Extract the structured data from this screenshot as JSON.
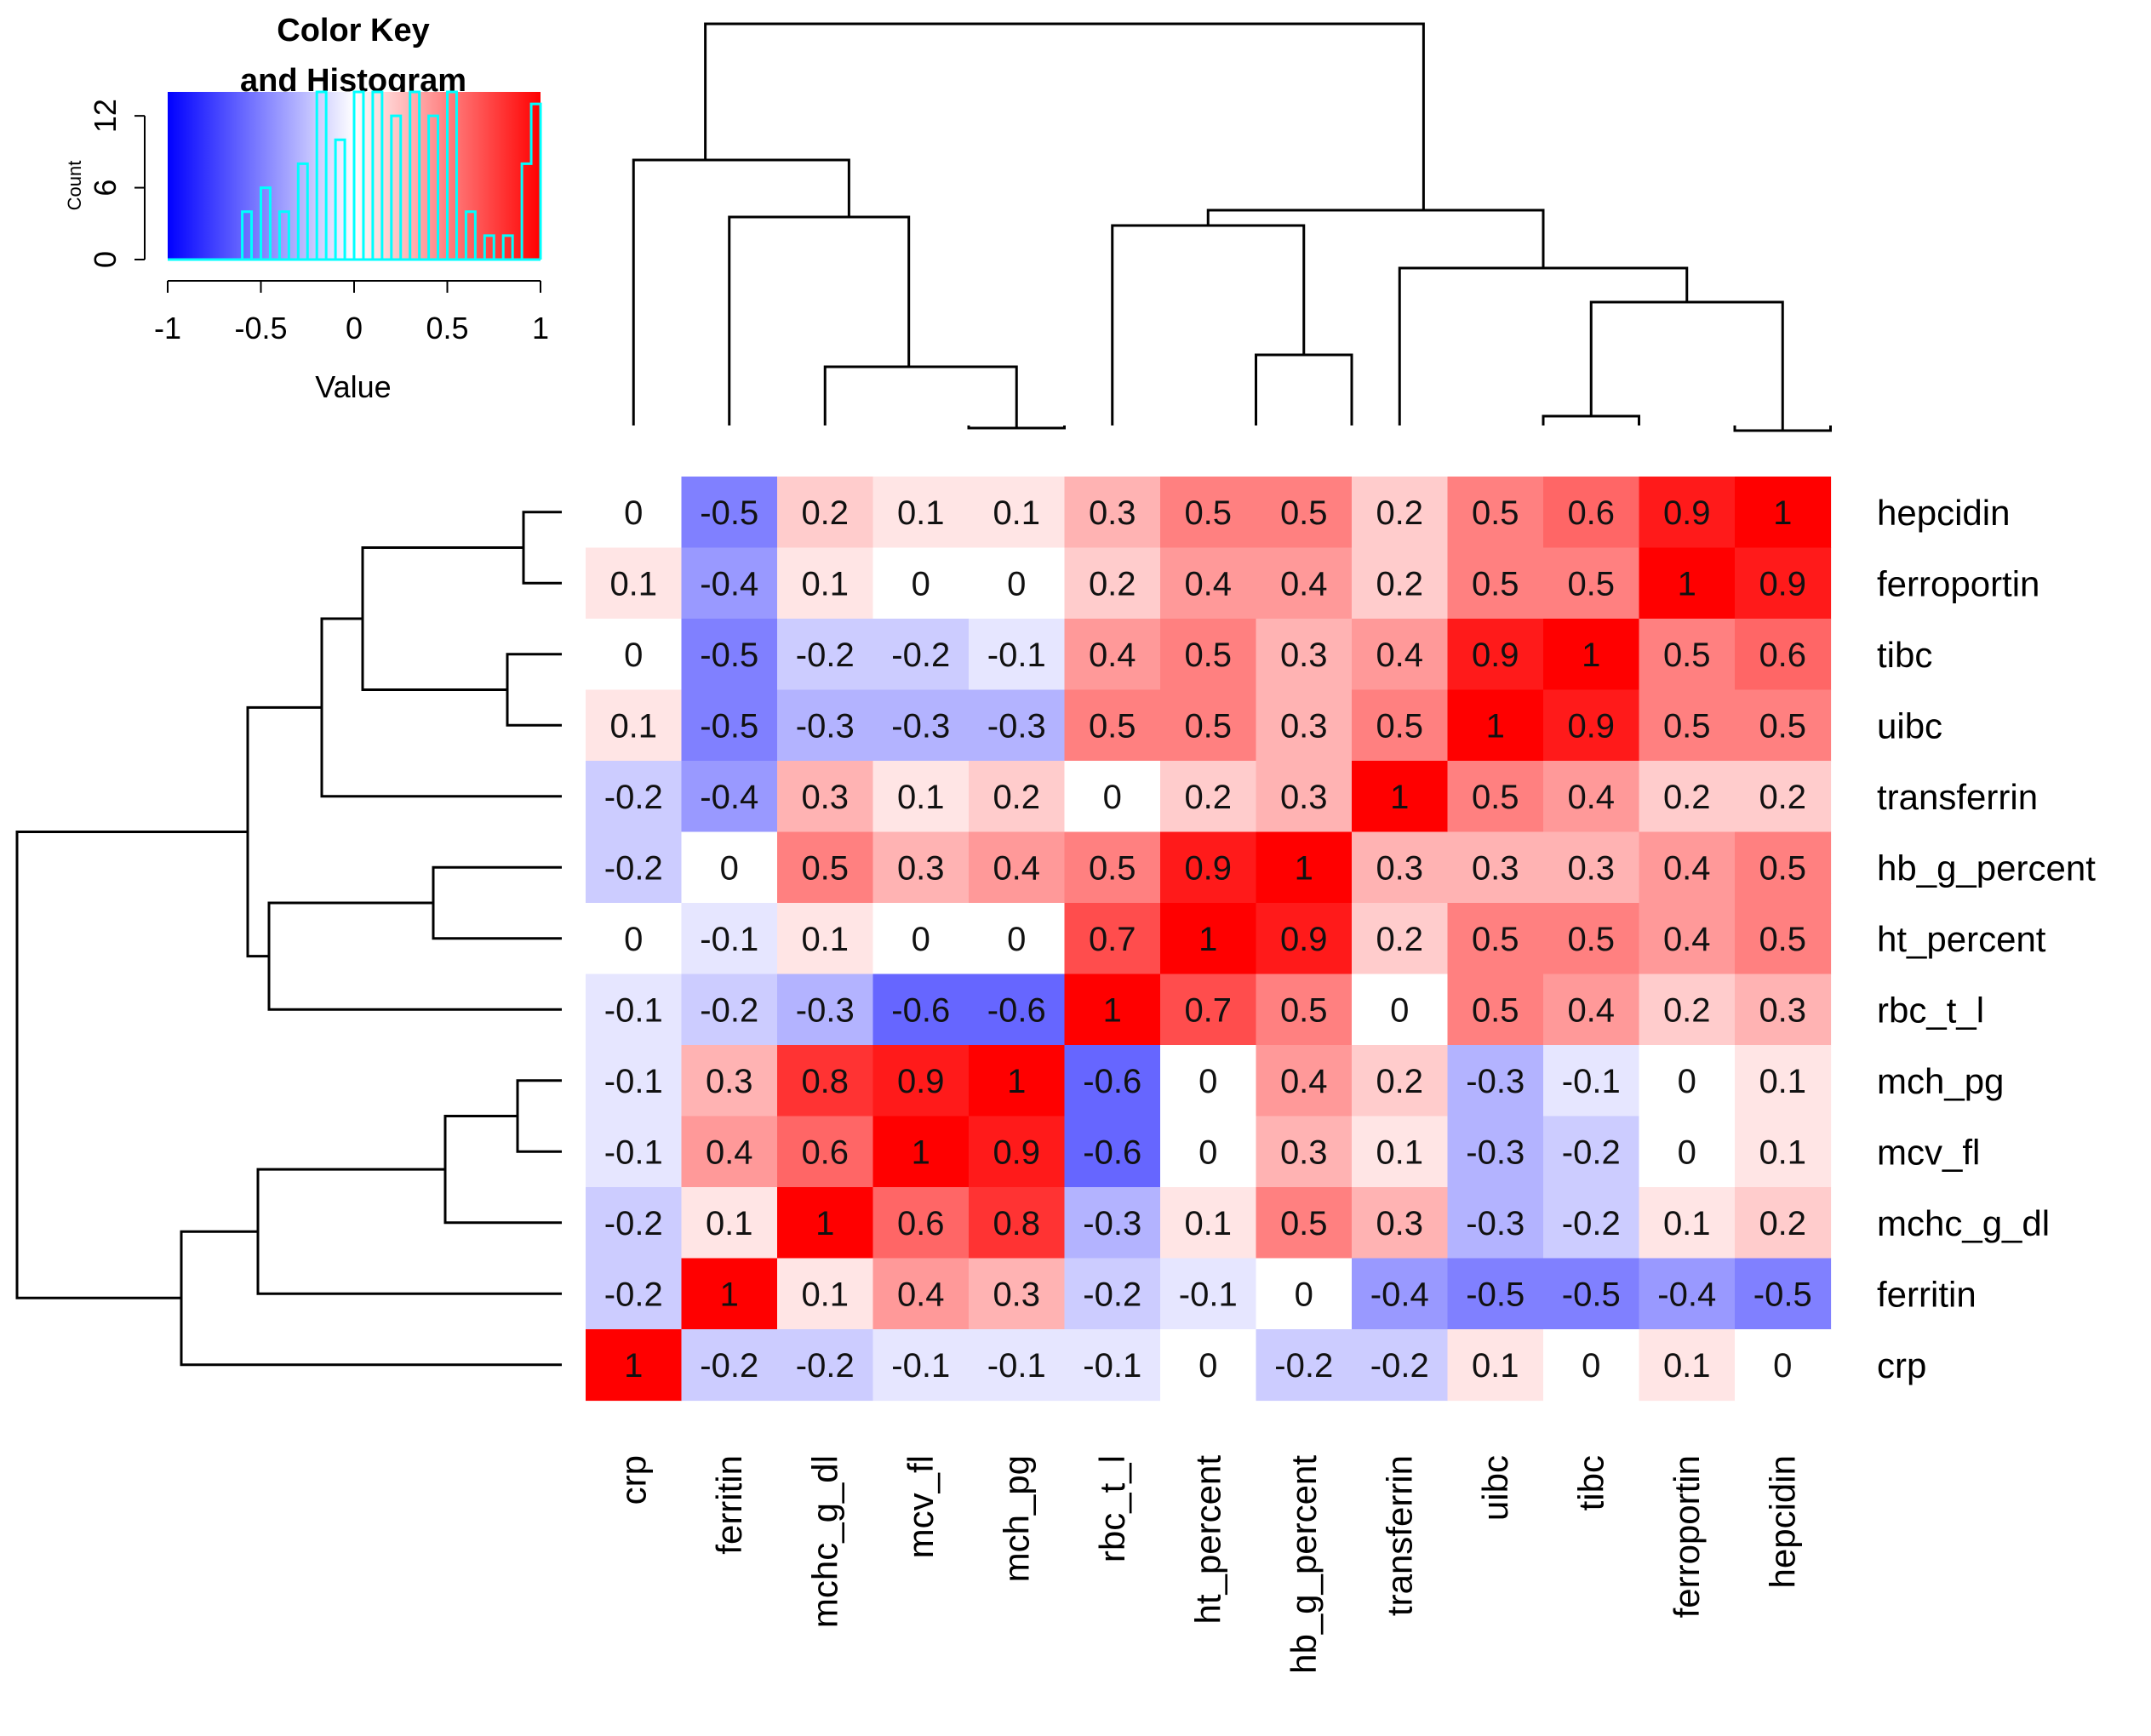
{
  "chart_data": {
    "type": "heatmap",
    "title": "",
    "row_labels": [
      "hepcidin",
      "ferroportin",
      "tibc",
      "uibc",
      "transferrin",
      "hb_g_percent",
      "ht_percent",
      "rbc_t_l",
      "mch_pg",
      "mcv_fl",
      "mchc_g_dl",
      "ferritin",
      "crp"
    ],
    "col_labels": [
      "crp",
      "ferritin",
      "mchc_g_dl",
      "mcv_fl",
      "mch_pg",
      "rbc_t_l",
      "ht_percent",
      "hb_g_percent",
      "transferrin",
      "uibc",
      "tibc",
      "ferroportin",
      "hepcidin"
    ],
    "values": [
      [
        0,
        -0.5,
        0.2,
        0.1,
        0.1,
        0.3,
        0.5,
        0.5,
        0.2,
        0.5,
        0.6,
        0.9,
        1
      ],
      [
        0.1,
        -0.4,
        0.1,
        0,
        0,
        0.2,
        0.4,
        0.4,
        0.2,
        0.5,
        0.5,
        1,
        0.9
      ],
      [
        0,
        -0.5,
        -0.2,
        -0.2,
        -0.1,
        0.4,
        0.5,
        0.3,
        0.4,
        0.9,
        1,
        0.5,
        0.6
      ],
      [
        0.1,
        -0.5,
        -0.3,
        -0.3,
        -0.3,
        0.5,
        0.5,
        0.3,
        0.5,
        1,
        0.9,
        0.5,
        0.5
      ],
      [
        -0.2,
        -0.4,
        0.3,
        0.1,
        0.2,
        0,
        0.2,
        0.3,
        1,
        0.5,
        0.4,
        0.2,
        0.2
      ],
      [
        -0.2,
        0,
        0.5,
        0.3,
        0.4,
        0.5,
        0.9,
        1,
        0.3,
        0.3,
        0.3,
        0.4,
        0.5
      ],
      [
        0,
        -0.1,
        0.1,
        0,
        0,
        0.7,
        1,
        0.9,
        0.2,
        0.5,
        0.5,
        0.4,
        0.5
      ],
      [
        -0.1,
        -0.2,
        -0.3,
        -0.6,
        -0.6,
        1,
        0.7,
        0.5,
        0,
        0.5,
        0.4,
        0.2,
        0.3
      ],
      [
        -0.1,
        0.3,
        0.8,
        0.9,
        1,
        -0.6,
        0,
        0.4,
        0.2,
        -0.3,
        -0.1,
        0,
        0.1
      ],
      [
        -0.1,
        0.4,
        0.6,
        1,
        0.9,
        -0.6,
        0,
        0.3,
        0.1,
        -0.3,
        -0.2,
        0,
        0.1
      ],
      [
        -0.2,
        0.1,
        1,
        0.6,
        0.8,
        -0.3,
        0.1,
        0.5,
        0.3,
        -0.3,
        -0.2,
        0.1,
        0.2
      ],
      [
        -0.2,
        1,
        0.1,
        0.4,
        0.3,
        -0.2,
        -0.1,
        0,
        -0.4,
        -0.5,
        -0.5,
        -0.4,
        -0.5
      ],
      [
        1,
        -0.2,
        -0.2,
        -0.1,
        -0.1,
        -0.1,
        0,
        -0.2,
        -0.2,
        0.1,
        0,
        0.1,
        0
      ]
    ],
    "color_scale": {
      "low": "#0000ff",
      "mid": "#ffffff",
      "high": "#ff0000",
      "range": [
        -1,
        1
      ]
    },
    "color_key": {
      "title_line1": "Color Key",
      "title_line2": "and Histogram",
      "xlabel": "Value",
      "ylabel": "Count",
      "x_ticks": [
        "-1",
        "-0.5",
        "0",
        "0.5",
        "1"
      ],
      "y_ticks": [
        "0",
        "6",
        "12"
      ],
      "histogram_color": "#00ffff"
    }
  }
}
